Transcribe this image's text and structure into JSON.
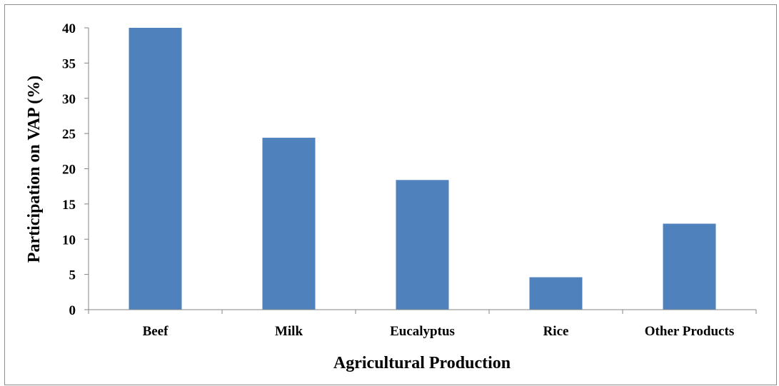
{
  "chart_data": {
    "type": "bar",
    "title": "",
    "xlabel": "Agricultural Production",
    "ylabel": "Participation on VAP (%)",
    "categories": [
      "Beef",
      "Milk",
      "Eucalyptus",
      "Rice",
      "Other Products"
    ],
    "values": [
      40,
      24.4,
      18.4,
      4.6,
      12.2
    ],
    "ylim": [
      0,
      40
    ],
    "yticks": [
      "0",
      "5",
      "10",
      "15",
      "20",
      "25",
      "30",
      "35",
      "40"
    ],
    "grid": false,
    "legend": "none",
    "colors": {
      "bar": "#4f81bd",
      "axis": "#868686",
      "frame": "#8c8c8c"
    }
  }
}
